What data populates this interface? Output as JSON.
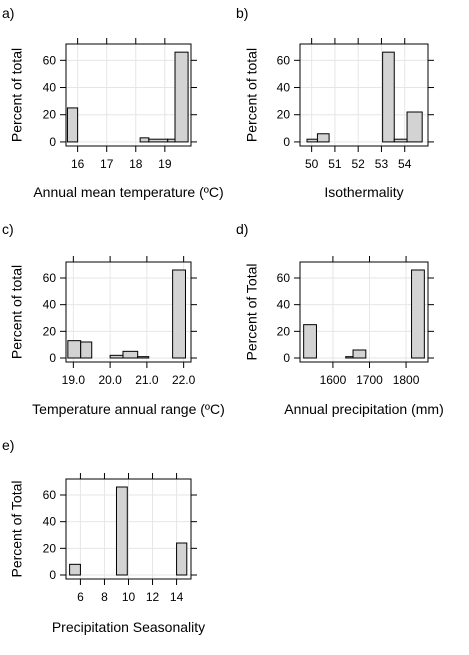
{
  "chart_data": [
    {
      "type": "bar",
      "panel": "a)",
      "xlabel": "Annual mean temperature (ºC)",
      "ylabel": "Percent of total",
      "xlim": [
        15.6,
        19.9
      ],
      "ylim": [
        -3,
        72
      ],
      "xticks": [
        16,
        17,
        18,
        19
      ],
      "xtick_labels": [
        "16",
        "17",
        "18",
        "19"
      ],
      "yticks": [
        0,
        20,
        40,
        60
      ],
      "ytick_labels": [
        "0",
        "20",
        "40",
        "60"
      ],
      "bins": [
        {
          "x0": 15.65,
          "x1": 16.0,
          "value": 25
        },
        {
          "x0": 18.15,
          "x1": 18.45,
          "value": 3
        },
        {
          "x0": 18.45,
          "x1": 19.1,
          "value": 2
        },
        {
          "x0": 19.1,
          "x1": 19.35,
          "value": 2
        },
        {
          "x0": 19.35,
          "x1": 19.8,
          "value": 66
        }
      ]
    },
    {
      "type": "bar",
      "panel": "b)",
      "xlabel": "Isothermality",
      "ylabel": "Percent of total",
      "xlim": [
        49.5,
        55.0
      ],
      "ylim": [
        -3,
        72
      ],
      "xticks": [
        50,
        51,
        52,
        53,
        54
      ],
      "xtick_labels": [
        "50",
        "51",
        "52",
        "53",
        "54"
      ],
      "yticks": [
        0,
        20,
        40,
        60
      ],
      "ytick_labels": [
        "0",
        "20",
        "40",
        "60"
      ],
      "bins": [
        {
          "x0": 49.8,
          "x1": 50.25,
          "value": 2
        },
        {
          "x0": 50.25,
          "x1": 50.75,
          "value": 6
        },
        {
          "x0": 53.05,
          "x1": 53.55,
          "value": 66
        },
        {
          "x0": 53.55,
          "x1": 54.1,
          "value": 2
        },
        {
          "x0": 54.1,
          "x1": 54.75,
          "value": 22
        }
      ]
    },
    {
      "type": "bar",
      "panel": "c)",
      "xlabel": "Temperature annual range (ºC)",
      "ylabel": "Percent of total",
      "xlim": [
        18.8,
        22.2
      ],
      "ylim": [
        -3,
        72
      ],
      "xticks": [
        19.0,
        20.0,
        21.0,
        22.0
      ],
      "xtick_labels": [
        "19.0",
        "20.0",
        "21.0",
        "22.0"
      ],
      "bins": [
        {
          "x0": 18.85,
          "x1": 19.2,
          "value": 13
        },
        {
          "x0": 19.2,
          "x1": 19.5,
          "value": 12
        },
        {
          "x0": 20.0,
          "x1": 20.35,
          "value": 2
        },
        {
          "x0": 20.35,
          "x1": 20.75,
          "value": 5
        },
        {
          "x0": 20.75,
          "x1": 21.05,
          "value": 1
        },
        {
          "x0": 21.7,
          "x1": 22.05,
          "value": 66
        }
      ],
      "yticks": [
        0,
        20,
        40,
        60
      ],
      "ytick_labels": [
        "0",
        "20",
        "40",
        "60"
      ]
    },
    {
      "type": "bar",
      "panel": "d)",
      "xlabel": "Annual precipitation (mm)",
      "ylabel": "Percent of Total",
      "xlim": [
        1510,
        1860
      ],
      "ylim": [
        -3,
        72
      ],
      "xticks": [
        1600,
        1700,
        1800
      ],
      "xtick_labels": [
        "1600",
        "1700",
        "1800"
      ],
      "yticks": [
        0,
        20,
        40,
        60
      ],
      "ytick_labels": [
        "0",
        "20",
        "40",
        "60"
      ],
      "bins": [
        {
          "x0": 1520,
          "x1": 1555,
          "value": 25
        },
        {
          "x0": 1635,
          "x1": 1655,
          "value": 1
        },
        {
          "x0": 1655,
          "x1": 1690,
          "value": 6
        },
        {
          "x0": 1815,
          "x1": 1850,
          "value": 66
        }
      ]
    },
    {
      "type": "bar",
      "panel": "e)",
      "xlabel": "Precipitation Seasonality",
      "ylabel": "Percent of Total",
      "xlim": [
        4.8,
        15.2
      ],
      "ylim": [
        -3,
        72
      ],
      "xticks": [
        6,
        8,
        10,
        12,
        14
      ],
      "xtick_labels": [
        "6",
        "8",
        "10",
        "12",
        "14"
      ],
      "yticks": [
        0,
        20,
        40,
        60
      ],
      "ytick_labels": [
        "0",
        "20",
        "40",
        "60"
      ],
      "bins": [
        {
          "x0": 5.1,
          "x1": 6.0,
          "value": 8
        },
        {
          "x0": 9.0,
          "x1": 9.9,
          "value": 66
        },
        {
          "x0": 14.0,
          "x1": 14.85,
          "value": 24
        }
      ]
    }
  ]
}
